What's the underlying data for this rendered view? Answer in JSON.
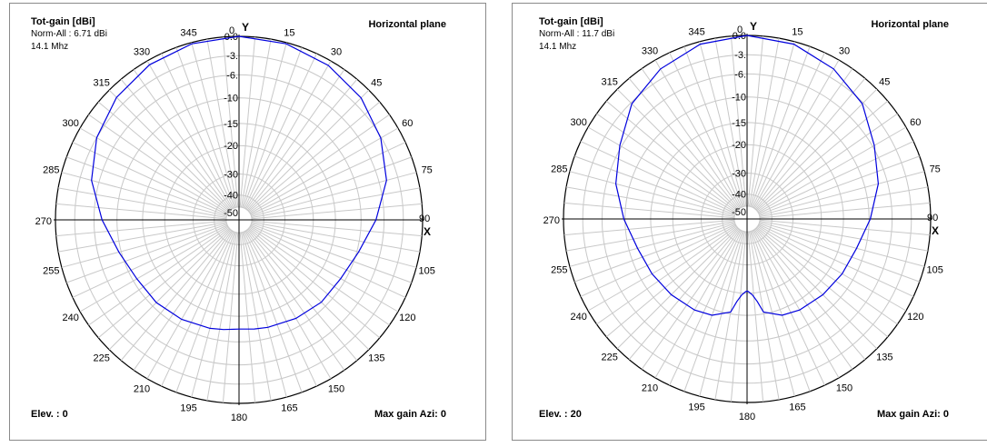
{
  "chart_data": [
    {
      "type": "polar",
      "title": "Tot-gain [dBi]",
      "norm": "Norm-All : 6.71 dBi",
      "freq": "14.1 Mhz",
      "plane": "Horizontal plane",
      "elev": "Elev. : 0",
      "max_gain": "Max gain Azi: 0",
      "y_axis_label": "Y",
      "x_axis_label": "X",
      "series_color": "#0000dd",
      "angle_labels": [
        "0",
        "15",
        "30",
        "45",
        "60",
        "75",
        "90",
        "105",
        "120",
        "135",
        "150",
        "165",
        "180",
        "195",
        "210",
        "225",
        "240",
        "255",
        "270",
        "285",
        "300",
        "315",
        "330",
        "345"
      ],
      "radial_ticks": [
        "0.0",
        "-3.",
        "-6.",
        "-10",
        "-15",
        "-20",
        "-30",
        "-40",
        "-50"
      ],
      "pattern": {
        "azimuth_deg": [
          0,
          15,
          30,
          45,
          60,
          75,
          90,
          105,
          120,
          135,
          150,
          165,
          172,
          180,
          188,
          195,
          210,
          225,
          240,
          255,
          270,
          285,
          300,
          315,
          330,
          345,
          360
        ],
        "gain_db": [
          0,
          -0.2,
          -0.8,
          -1.7,
          -3.1,
          -4.8,
          -7.4,
          -9.7,
          -10.9,
          -11.1,
          -11.6,
          -12.1,
          -12.3,
          -12.5,
          -12.2,
          -11.9,
          -11.4,
          -11.0,
          -10.8,
          -9.6,
          -7.4,
          -4.8,
          -3.0,
          -1.6,
          -0.7,
          -0.2,
          0
        ]
      }
    },
    {
      "type": "polar",
      "title": "Tot-gain [dBi]",
      "norm": "Norm-All : 11.7 dBi",
      "freq": "14.1 Mhz",
      "plane": "Horizontal plane",
      "elev": "Elev. : 20",
      "max_gain": "Max gain Azi: 0",
      "y_axis_label": "Y",
      "x_axis_label": "X",
      "series_color": "#0000dd",
      "angle_labels": [
        "0",
        "15",
        "30",
        "45",
        "60",
        "75",
        "90",
        "105",
        "120",
        "135",
        "150",
        "165",
        "180",
        "195",
        "210",
        "225",
        "240",
        "255",
        "270",
        "285",
        "300",
        "315",
        "330",
        "345"
      ],
      "radial_ticks": [
        "0.0",
        "-3.",
        "-6.",
        "-10",
        "-15",
        "-20",
        "-30",
        "-40",
        "-50"
      ],
      "pattern": {
        "azimuth_deg": [
          0,
          15,
          30,
          45,
          60,
          75,
          90,
          105,
          120,
          135,
          150,
          160,
          170,
          173,
          176,
          179,
          180,
          181,
          184,
          187,
          190,
          200,
          210,
          225,
          240,
          255,
          270,
          285,
          300,
          315,
          330,
          345,
          360
        ],
        "gain_db": [
          0,
          -0.4,
          -1.6,
          -3.2,
          -5.7,
          -7.6,
          -9.8,
          -11.7,
          -12.4,
          -12.9,
          -13.3,
          -13.8,
          -15.4,
          -18.0,
          -19.6,
          -20.6,
          -20.8,
          -20.6,
          -19.6,
          -18.0,
          -15.4,
          -13.8,
          -13.3,
          -12.9,
          -12.4,
          -11.7,
          -9.8,
          -7.6,
          -5.7,
          -3.2,
          -1.6,
          -0.4,
          0
        ]
      }
    }
  ]
}
